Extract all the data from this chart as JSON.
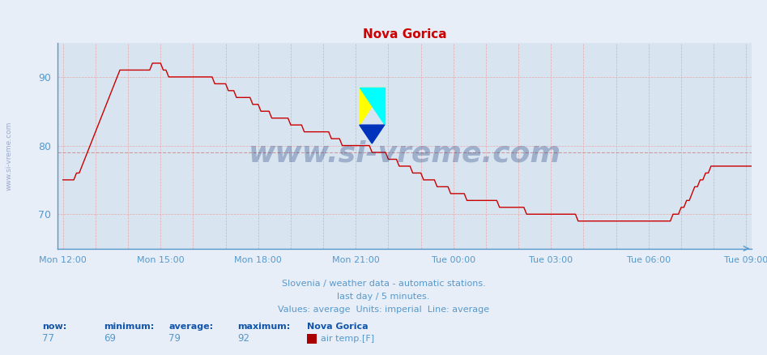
{
  "title": "Nova Gorica",
  "title_color": "#cc0000",
  "bg_color": "#e8eef8",
  "plot_bg_color": "#d8e4f0",
  "line_color": "#cc0000",
  "tick_label_color": "#5599cc",
  "watermark_text": "www.si-vreme.com",
  "watermark_color": "#1a3a7a",
  "sub_text1": "Slovenia / weather data - automatic stations.",
  "sub_text2": "last day / 5 minutes.",
  "sub_text3": "Values: average  Units: imperial  Line: average",
  "sub_text_color": "#5599cc",
  "stats_label_color": "#1155aa",
  "stats_value_color": "#5599cc",
  "now_val": 77,
  "min_val": 69,
  "avg_val": 79,
  "max_val": 92,
  "station_name": "Nova Gorica",
  "legend_label": "air temp.[F]",
  "legend_color": "#aa0000",
  "ylim": [
    65,
    95
  ],
  "yticks": [
    70,
    80,
    90
  ],
  "avg_line_y": 79,
  "x_tick_labels": [
    "Mon 12:00",
    "Mon 15:00",
    "Mon 18:00",
    "Mon 21:00",
    "Tue 00:00",
    "Tue 03:00",
    "Tue 06:00",
    "Tue 09:00"
  ],
  "x_tick_positions": [
    0,
    36,
    72,
    108,
    144,
    180,
    216,
    252
  ],
  "total_points": 253,
  "temperatures": [
    75,
    75,
    75,
    75,
    75,
    76,
    76,
    77,
    78,
    79,
    80,
    81,
    82,
    83,
    84,
    85,
    86,
    87,
    88,
    89,
    90,
    91,
    91,
    91,
    91,
    91,
    91,
    91,
    91,
    91,
    91,
    91,
    91,
    92,
    92,
    92,
    92,
    91,
    91,
    90,
    90,
    90,
    90,
    90,
    90,
    90,
    90,
    90,
    90,
    90,
    90,
    90,
    90,
    90,
    90,
    90,
    89,
    89,
    89,
    89,
    89,
    88,
    88,
    88,
    87,
    87,
    87,
    87,
    87,
    87,
    86,
    86,
    86,
    85,
    85,
    85,
    85,
    84,
    84,
    84,
    84,
    84,
    84,
    84,
    83,
    83,
    83,
    83,
    83,
    82,
    82,
    82,
    82,
    82,
    82,
    82,
    82,
    82,
    82,
    81,
    81,
    81,
    81,
    80,
    80,
    80,
    80,
    80,
    80,
    80,
    80,
    80,
    80,
    80,
    79,
    79,
    79,
    79,
    79,
    79,
    78,
    78,
    78,
    78,
    77,
    77,
    77,
    77,
    77,
    76,
    76,
    76,
    76,
    75,
    75,
    75,
    75,
    75,
    74,
    74,
    74,
    74,
    74,
    73,
    73,
    73,
    73,
    73,
    73,
    72,
    72,
    72,
    72,
    72,
    72,
    72,
    72,
    72,
    72,
    72,
    72,
    71,
    71,
    71,
    71,
    71,
    71,
    71,
    71,
    71,
    71,
    70,
    70,
    70,
    70,
    70,
    70,
    70,
    70,
    70,
    70,
    70,
    70,
    70,
    70,
    70,
    70,
    70,
    70,
    70,
    69,
    69,
    69,
    69,
    69,
    69,
    69,
    69,
    69,
    69,
    69,
    69,
    69,
    69,
    69,
    69,
    69,
    69,
    69,
    69,
    69,
    69,
    69,
    69,
    69,
    69,
    69,
    69,
    69,
    69,
    69,
    69,
    69,
    69,
    69,
    70,
    70,
    70,
    71,
    71,
    72,
    72,
    73,
    74,
    74,
    75,
    75,
    76,
    76,
    77,
    77,
    77,
    77,
    77,
    77,
    77,
    77,
    77,
    77,
    77,
    77,
    77,
    77,
    77,
    77
  ]
}
